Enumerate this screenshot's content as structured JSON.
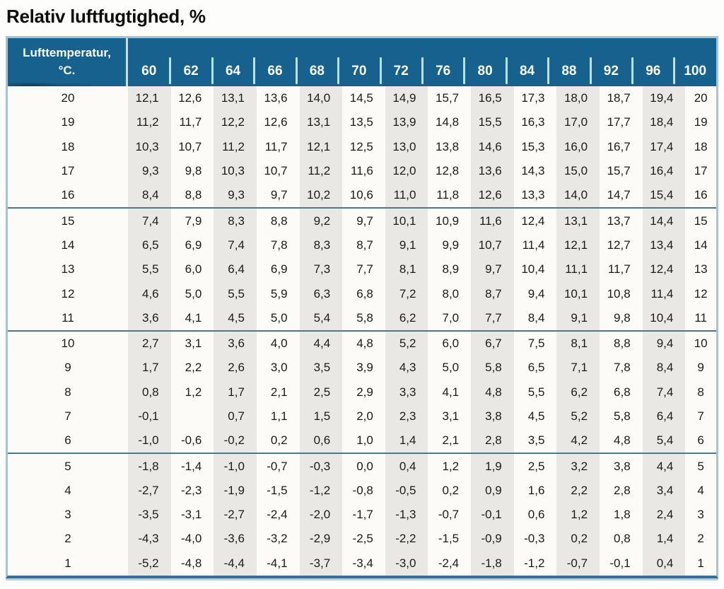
{
  "title": "Relativ luftfugtighed, %",
  "colors": {
    "header-bg": "#17618f",
    "stripe": "#e9e8e4",
    "border-bottom": "#35709d",
    "group-divider": "#537687"
  },
  "table": {
    "corner_label_line1": "Lufttemperatur,",
    "corner_label_line2": "°C.",
    "columns": [
      "60",
      "62",
      "64",
      "66",
      "68",
      "70",
      "72",
      "76",
      "80",
      "84",
      "88",
      "92",
      "96",
      "100"
    ],
    "row_groups": [
      {
        "rows": [
          {
            "temp": "20",
            "values": [
              "12,1",
              "12,6",
              "13,1",
              "13,6",
              "14,0",
              "14,5",
              "14,9",
              "15,7",
              "16,5",
              "17,3",
              "18,0",
              "18,7",
              "19,4",
              "20"
            ]
          },
          {
            "temp": "19",
            "values": [
              "11,2",
              "11,7",
              "12,2",
              "12,6",
              "13,1",
              "13,5",
              "13,9",
              "14,8",
              "15,5",
              "16,3",
              "17,0",
              "17,7",
              "18,4",
              "19"
            ]
          },
          {
            "temp": "18",
            "values": [
              "10,3",
              "10,7",
              "11,2",
              "11,7",
              "12,1",
              "12,5",
              "13,0",
              "13,8",
              "14,6",
              "15,3",
              "16,0",
              "16,7",
              "17,4",
              "18"
            ]
          },
          {
            "temp": "17",
            "values": [
              "9,3",
              "9,8",
              "10,3",
              "10,7",
              "11,2",
              "11,6",
              "12,0",
              "12,8",
              "13,6",
              "14,3",
              "15,0",
              "15,7",
              "16,4",
              "17"
            ]
          },
          {
            "temp": "16",
            "values": [
              "8,4",
              "8,8",
              "9,3",
              "9,7",
              "10,2",
              "10,6",
              "11,0",
              "11,8",
              "12,6",
              "13,3",
              "14,0",
              "14,7",
              "15,4",
              "16"
            ]
          }
        ]
      },
      {
        "rows": [
          {
            "temp": "15",
            "values": [
              "7,4",
              "7,9",
              "8,3",
              "8,8",
              "9,2",
              "9,7",
              "10,1",
              "10,9",
              "11,6",
              "12,4",
              "13,1",
              "13,7",
              "14,4",
              "15"
            ]
          },
          {
            "temp": "14",
            "values": [
              "6,5",
              "6,9",
              "7,4",
              "7,8",
              "8,3",
              "8,7",
              "9,1",
              "9,9",
              "10,7",
              "11,4",
              "12,1",
              "12,7",
              "13,4",
              "14"
            ]
          },
          {
            "temp": "13",
            "values": [
              "5,5",
              "6,0",
              "6,4",
              "6,9",
              "7,3",
              "7,7",
              "8,1",
              "8,9",
              "9,7",
              "10,4",
              "11,1",
              "11,7",
              "12,4",
              "13"
            ]
          },
          {
            "temp": "12",
            "values": [
              "4,6",
              "5,0",
              "5,5",
              "5,9",
              "6,3",
              "6,8",
              "7,2",
              "8,0",
              "8,7",
              "9,4",
              "10,1",
              "10,8",
              "11,4",
              "12"
            ]
          },
          {
            "temp": "11",
            "values": [
              "3,6",
              "4,1",
              "4,5",
              "5,0",
              "5,4",
              "5,8",
              "6,2",
              "7,0",
              "7,7",
              "8,4",
              "9,1",
              "9,8",
              "10,4",
              "11"
            ]
          }
        ]
      },
      {
        "rows": [
          {
            "temp": "10",
            "values": [
              "2,7",
              "3,1",
              "3,6",
              "4,0",
              "4,4",
              "4,8",
              "5,2",
              "6,0",
              "6,7",
              "7,5",
              "8,1",
              "8,8",
              "9,4",
              "10"
            ]
          },
          {
            "temp": "9",
            "values": [
              "1,7",
              "2,2",
              "2,6",
              "3,0",
              "3,5",
              "3,9",
              "4,3",
              "5,0",
              "5,8",
              "6,5",
              "7,1",
              "7,8",
              "8,4",
              "9"
            ]
          },
          {
            "temp": "8",
            "values": [
              "0,8",
              "1,2",
              "1,7",
              "2,1",
              "2,5",
              "2,9",
              "3,3",
              "4,1",
              "4,8",
              "5,5",
              "6,2",
              "6,8",
              "7,4",
              "8"
            ]
          },
          {
            "temp": "7",
            "values": [
              "-0,1",
              "",
              "0,7",
              "1,1",
              "1,5",
              "2,0",
              "2,3",
              "3,1",
              "3,8",
              "4,5",
              "5,2",
              "5,8",
              "6,4",
              "7"
            ]
          },
          {
            "temp": "6",
            "values": [
              "-1,0",
              "-0,6",
              "-0,2",
              "0,2",
              "0,6",
              "1,0",
              "1,4",
              "2,1",
              "2,8",
              "3,5",
              "4,2",
              "4,8",
              "5,4",
              "6"
            ]
          }
        ]
      },
      {
        "rows": [
          {
            "temp": "5",
            "values": [
              "-1,8",
              "-1,4",
              "-1,0",
              "-0,7",
              "-0,3",
              "0,0",
              "0,4",
              "1,2",
              "1,9",
              "2,5",
              "3,2",
              "3,8",
              "4,4",
              "5"
            ]
          },
          {
            "temp": "4",
            "values": [
              "-2,7",
              "-2,3",
              "-1,9",
              "-1,5",
              "-1,2",
              "-0,8",
              "-0,5",
              "0,2",
              "0,9",
              "1,6",
              "2,2",
              "2,8",
              "3,4",
              "4"
            ]
          },
          {
            "temp": "3",
            "values": [
              "-3,5",
              "-3,1",
              "-2,7",
              "-2,4",
              "-2,0",
              "-1,7",
              "-1,3",
              "-0,7",
              "-0,1",
              "0,6",
              "1,2",
              "1,8",
              "2,4",
              "3"
            ]
          },
          {
            "temp": "2",
            "values": [
              "-4,3",
              "-4,0",
              "-3,6",
              "-3,2",
              "-2,9",
              "-2,5",
              "-2,2",
              "-1,5",
              "-0,9",
              "-0,3",
              "0,2",
              "0,8",
              "1,4",
              "2"
            ]
          },
          {
            "temp": "1",
            "values": [
              "-5,2",
              "-4,8",
              "-4,4",
              "-4,1",
              "-3,7",
              "-3,4",
              "-3,0",
              "-2,4",
              "-1,8",
              "-1,2",
              "-0,7",
              "-0,1",
              "0,4",
              "1"
            ]
          }
        ]
      }
    ]
  }
}
